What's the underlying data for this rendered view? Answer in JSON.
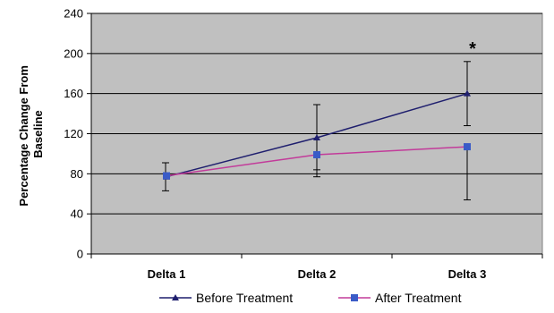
{
  "chart_data": {
    "type": "line",
    "categories": [
      "Delta 1",
      "Delta 2",
      "Delta 3"
    ],
    "ylabel": "Percentage Change From Baseline",
    "ylabel_lines": [
      "Percentage Change From",
      "Baseline"
    ],
    "ylim": [
      0,
      240
    ],
    "yticks": [
      "0",
      "40",
      "80",
      "120",
      "160",
      "200",
      "240"
    ],
    "grid": true,
    "legend_position": "bottom",
    "series": [
      {
        "name": "Before Treatment",
        "color": "#1f1f6e",
        "marker": "triangle",
        "values": [
          77,
          116,
          160
        ],
        "error_upper": [
          91,
          149,
          192
        ],
        "error_lower": [
          63,
          84,
          128
        ]
      },
      {
        "name": "After Treatment",
        "color": "#c23b9a",
        "marker_color": "#3a5bc7",
        "marker": "square",
        "values": [
          78,
          99,
          107
        ],
        "error_upper": [
          null,
          null,
          null
        ],
        "error_lower": [
          null,
          77,
          54
        ]
      }
    ],
    "annotations": [
      {
        "text": "*",
        "category": "Delta 3",
        "value": 207
      }
    ],
    "plot_background": "#c0c0c0"
  }
}
